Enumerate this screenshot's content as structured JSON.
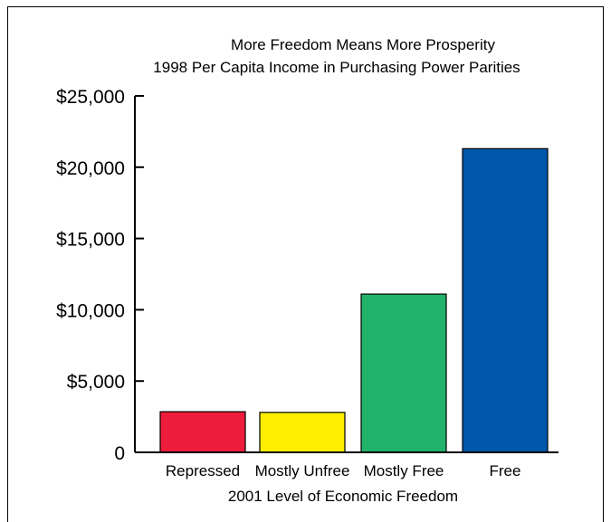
{
  "chart_data": {
    "type": "bar",
    "title": "More Freedom Means More Prosperity",
    "subtitle": "1998 Per Capita Income in Purchasing Power Parities",
    "xlabel": "2001 Level of Economic Freedom",
    "ylabel": "",
    "categories": [
      "Repressed",
      "Mostly Unfree",
      "Mostly Free",
      "Free"
    ],
    "values": [
      2850,
      2800,
      11100,
      21300
    ],
    "colors": [
      "#ee1c3b",
      "#ffee00",
      "#22b36a",
      "#0058ac"
    ],
    "ylim": [
      0,
      25000
    ],
    "yticks": [
      0,
      5000,
      10000,
      15000,
      20000,
      25000
    ],
    "ytick_labels": [
      "0",
      "$5,000",
      "$10,000",
      "$15,000",
      "$20,000",
      "$25,000"
    ],
    "grid": false,
    "legend": "none"
  }
}
